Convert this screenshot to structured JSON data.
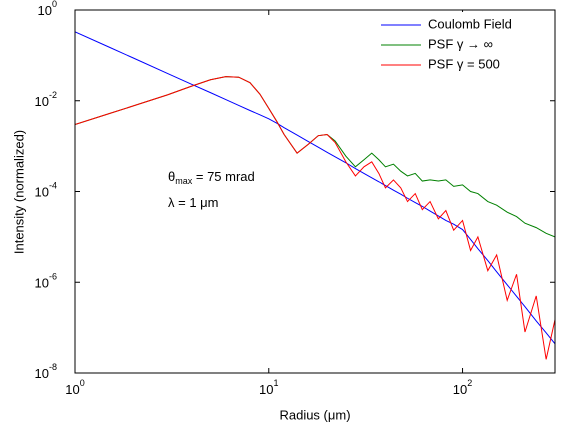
{
  "chart_data": {
    "type": "line",
    "x_label": "Radius (μm)",
    "y_label": "Intensity (normalized)",
    "x": [
      1,
      1.5,
      2,
      3,
      4,
      5,
      6,
      7,
      8,
      9,
      10,
      11,
      12,
      14,
      16,
      18,
      20,
      22,
      25,
      28,
      31,
      34,
      37,
      40,
      44,
      48,
      52,
      57,
      62,
      68,
      75,
      82,
      90,
      100,
      110,
      120,
      135,
      150,
      170,
      190,
      210,
      240,
      270,
      300
    ],
    "series": [
      {
        "name": "Coulomb Field",
        "color": "#0000ff",
        "values": [
          0.33,
          0.152,
          0.0875,
          0.04,
          0.023,
          0.0151,
          0.0106,
          0.0079,
          0.0061,
          0.0049,
          0.004,
          0.0032,
          0.00255,
          0.00175,
          0.00126,
          0.00095,
          0.00073,
          0.00058,
          0.00043,
          0.00032,
          0.00025,
          0.0002,
          0.000164,
          0.000135,
          0.000107,
          8.7e-05,
          7.1e-05,
          5.7e-05,
          4.7e-05,
          3.7e-05,
          2.9e-05,
          2.3e-05,
          1.9e-05,
          1.45e-05,
          8.8e-06,
          5.5e-06,
          3e-06,
          1.7e-06,
          8.8e-07,
          4.9e-07,
          2.9e-07,
          1.4e-07,
          7.7e-08,
          4.4e-08
        ]
      },
      {
        "name": "PSF γ → ∞",
        "color": "#008000",
        "values": [
          0.003,
          0.0052,
          0.0077,
          0.0135,
          0.021,
          0.029,
          0.034,
          0.033,
          0.025,
          0.014,
          0.0068,
          0.0035,
          0.0018,
          0.0007,
          0.0011,
          0.0017,
          0.0018,
          0.0013,
          0.0006,
          0.00035,
          0.0005,
          0.0007,
          0.0005,
          0.00035,
          0.0004,
          0.00028,
          0.00022,
          0.00025,
          0.00017,
          0.00018,
          0.00017,
          0.00018,
          0.00013,
          0.00014,
          0.0001,
          9e-05,
          6e-05,
          5e-05,
          3.5e-05,
          2.8e-05,
          2e-05,
          1.6e-05,
          1.2e-05,
          1e-05
        ]
      },
      {
        "name": "PSF γ = 500",
        "color": "#ff0000",
        "values": [
          0.003,
          0.0052,
          0.0077,
          0.0135,
          0.021,
          0.029,
          0.034,
          0.033,
          0.025,
          0.014,
          0.0068,
          0.0035,
          0.0018,
          0.0007,
          0.0011,
          0.0017,
          0.0018,
          0.0012,
          0.00045,
          0.00022,
          0.00035,
          0.00045,
          0.00025,
          0.00012,
          0.00018,
          0.00012,
          6e-05,
          9e-05,
          4e-05,
          6e-05,
          2.5e-05,
          3.8e-05,
          1.4e-05,
          2.3e-05,
          5e-06,
          1e-05,
          1.8e-06,
          4e-06,
          4e-07,
          1.5e-06,
          8e-08,
          5e-07,
          2e-08,
          1.5e-07
        ]
      }
    ],
    "xlim": [
      1,
      300
    ],
    "ylim": [
      1e-08,
      1
    ],
    "xticks": [
      {
        "value": 1,
        "label": "10^0"
      },
      {
        "value": 10,
        "label": "10^1"
      },
      {
        "value": 100,
        "label": "10^2"
      }
    ],
    "yticks": [
      {
        "value": 1e-08,
        "label": "10^-8"
      },
      {
        "value": 1e-06,
        "label": "10^-6"
      },
      {
        "value": 0.0001,
        "label": "10^-4"
      },
      {
        "value": 0.01,
        "label": "10^-2"
      },
      {
        "value": 1,
        "label": "10^0"
      }
    ],
    "x_log": true,
    "y_log": true,
    "legend": "upper right",
    "annotations": [
      [
        "θ",
        "max",
        " = 75 mrad"
      ],
      [
        "λ = 1 μm"
      ]
    ]
  }
}
